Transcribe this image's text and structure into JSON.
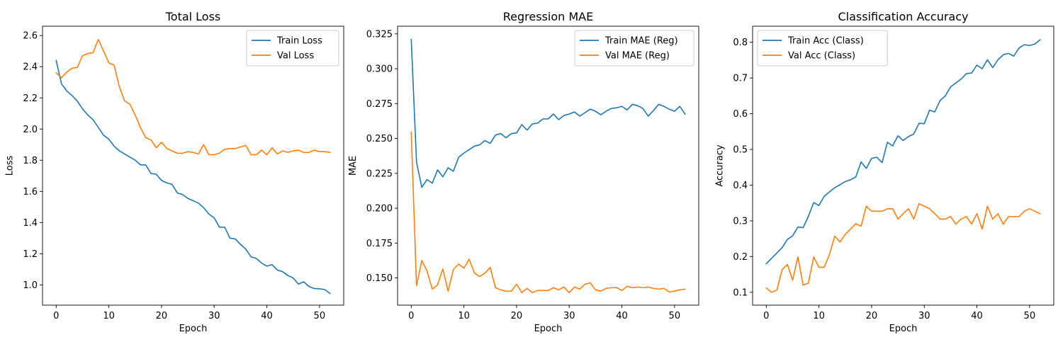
{
  "chart_data": [
    {
      "type": "line",
      "title": "Total Loss",
      "xlabel": "Epoch",
      "ylabel": "Loss",
      "xlim": [
        -2.6,
        54.6
      ],
      "ylim": [
        0.87,
        2.66
      ],
      "xticks": [
        0,
        10,
        20,
        30,
        40,
        50
      ],
      "yticks": [
        1.0,
        1.2,
        1.4,
        1.6,
        1.8,
        2.0,
        2.2,
        2.4,
        2.6
      ],
      "ytick_labels": [
        "1.0",
        "1.2",
        "1.4",
        "1.6",
        "1.8",
        "2.0",
        "2.2",
        "2.4",
        "2.6"
      ],
      "legend_position": "top-right",
      "grid": false,
      "series": [
        {
          "name": "Train Loss",
          "color": "#1f77b4",
          "values": [
            2.44,
            2.29,
            2.245,
            2.215,
            2.18,
            2.13,
            2.09,
            2.06,
            2.01,
            1.96,
            1.935,
            1.89,
            1.86,
            1.84,
            1.82,
            1.8,
            1.77,
            1.77,
            1.715,
            1.71,
            1.67,
            1.655,
            1.645,
            1.59,
            1.58,
            1.555,
            1.54,
            1.525,
            1.495,
            1.455,
            1.43,
            1.37,
            1.37,
            1.3,
            1.295,
            1.26,
            1.23,
            1.18,
            1.17,
            1.14,
            1.12,
            1.13,
            1.095,
            1.085,
            1.06,
            1.045,
            1.005,
            1.02,
            0.99,
            0.977,
            0.975,
            0.97,
            0.945
          ]
        },
        {
          "name": "Val Loss",
          "color": "#ff7f0e",
          "values": [
            2.36,
            2.33,
            2.365,
            2.39,
            2.395,
            2.47,
            2.485,
            2.49,
            2.575,
            2.5,
            2.425,
            2.41,
            2.27,
            2.18,
            2.16,
            2.09,
            2.01,
            1.945,
            1.93,
            1.88,
            1.915,
            1.875,
            1.86,
            1.845,
            1.845,
            1.855,
            1.85,
            1.84,
            1.9,
            1.835,
            1.835,
            1.845,
            1.87,
            1.875,
            1.875,
            1.885,
            1.895,
            1.835,
            1.835,
            1.865,
            1.835,
            1.88,
            1.84,
            1.86,
            1.85,
            1.86,
            1.865,
            1.85,
            1.85,
            1.865,
            1.855,
            1.855,
            1.85
          ]
        }
      ]
    },
    {
      "type": "line",
      "title": "Regression MAE",
      "xlabel": "Epoch",
      "ylabel": "MAE",
      "xlim": [
        -2.6,
        54.6
      ],
      "ylim": [
        0.1305,
        0.3305
      ],
      "xticks": [
        0,
        10,
        20,
        30,
        40,
        50
      ],
      "yticks": [
        0.15,
        0.175,
        0.2,
        0.225,
        0.25,
        0.275,
        0.3,
        0.325
      ],
      "ytick_labels": [
        "0.150",
        "0.175",
        "0.200",
        "0.225",
        "0.250",
        "0.275",
        "0.300",
        "0.325"
      ],
      "legend_position": "top-right",
      "grid": false,
      "series": [
        {
          "name": "Train MAE (Reg)",
          "color": "#1f77b4",
          "values": [
            0.321,
            0.233,
            0.215,
            0.2205,
            0.218,
            0.2275,
            0.2225,
            0.229,
            0.2265,
            0.2365,
            0.2395,
            0.242,
            0.2445,
            0.2455,
            0.2485,
            0.2465,
            0.2525,
            0.2535,
            0.2505,
            0.2535,
            0.254,
            0.26,
            0.256,
            0.2605,
            0.261,
            0.264,
            0.264,
            0.2675,
            0.2635,
            0.2665,
            0.2675,
            0.269,
            0.266,
            0.2685,
            0.271,
            0.2695,
            0.267,
            0.2695,
            0.2715,
            0.272,
            0.273,
            0.2705,
            0.2745,
            0.2735,
            0.2715,
            0.266,
            0.27,
            0.2745,
            0.273,
            0.271,
            0.2695,
            0.273,
            0.2675
          ]
        },
        {
          "name": "Val MAE (Reg)",
          "color": "#ff7f0e",
          "values": [
            0.2545,
            0.1445,
            0.1625,
            0.155,
            0.142,
            0.145,
            0.1565,
            0.1405,
            0.156,
            0.16,
            0.157,
            0.1635,
            0.1535,
            0.151,
            0.1535,
            0.1575,
            0.143,
            0.1415,
            0.1405,
            0.1405,
            0.1455,
            0.1395,
            0.1425,
            0.1395,
            0.141,
            0.141,
            0.141,
            0.143,
            0.1415,
            0.1435,
            0.1395,
            0.1435,
            0.142,
            0.1455,
            0.1465,
            0.1415,
            0.1405,
            0.1425,
            0.143,
            0.143,
            0.141,
            0.144,
            0.143,
            0.1435,
            0.143,
            0.1435,
            0.1425,
            0.142,
            0.1425,
            0.14,
            0.1405,
            0.1415,
            0.142
          ]
        }
      ]
    },
    {
      "type": "line",
      "title": "Classification Accuracy",
      "xlabel": "Epoch",
      "ylabel": "Accuracy",
      "xlim": [
        -2.6,
        54.6
      ],
      "ylim": [
        0.064,
        0.845
      ],
      "xticks": [
        0,
        10,
        20,
        30,
        40,
        50
      ],
      "yticks": [
        0.1,
        0.2,
        0.3,
        0.4,
        0.5,
        0.6,
        0.7,
        0.8
      ],
      "ytick_labels": [
        "0.1",
        "0.2",
        "0.3",
        "0.4",
        "0.5",
        "0.6",
        "0.7",
        "0.8"
      ],
      "legend_position": "top-left",
      "grid": false,
      "series": [
        {
          "name": "Train Acc (Class)",
          "color": "#1f77b4",
          "values": [
            0.18,
            0.195,
            0.21,
            0.225,
            0.248,
            0.258,
            0.283,
            0.281,
            0.313,
            0.351,
            0.343,
            0.369,
            0.381,
            0.393,
            0.401,
            0.41,
            0.415,
            0.423,
            0.465,
            0.447,
            0.475,
            0.478,
            0.463,
            0.52,
            0.51,
            0.538,
            0.525,
            0.536,
            0.543,
            0.573,
            0.572,
            0.61,
            0.605,
            0.637,
            0.65,
            0.675,
            0.686,
            0.697,
            0.712,
            0.714,
            0.736,
            0.726,
            0.751,
            0.729,
            0.751,
            0.765,
            0.769,
            0.761,
            0.784,
            0.793,
            0.791,
            0.795,
            0.807
          ]
        },
        {
          "name": "Val Acc (Class)",
          "color": "#ff7f0e",
          "values": [
            0.112,
            0.1,
            0.106,
            0.163,
            0.178,
            0.134,
            0.199,
            0.12,
            0.126,
            0.199,
            0.17,
            0.17,
            0.206,
            0.257,
            0.241,
            0.262,
            0.277,
            0.292,
            0.285,
            0.341,
            0.327,
            0.327,
            0.327,
            0.334,
            0.334,
            0.305,
            0.32,
            0.334,
            0.305,
            0.348,
            0.341,
            0.334,
            0.32,
            0.305,
            0.305,
            0.312,
            0.291,
            0.305,
            0.312,
            0.291,
            0.32,
            0.277,
            0.341,
            0.305,
            0.32,
            0.291,
            0.312,
            0.312,
            0.312,
            0.327,
            0.334,
            0.327,
            0.32
          ]
        }
      ]
    }
  ]
}
